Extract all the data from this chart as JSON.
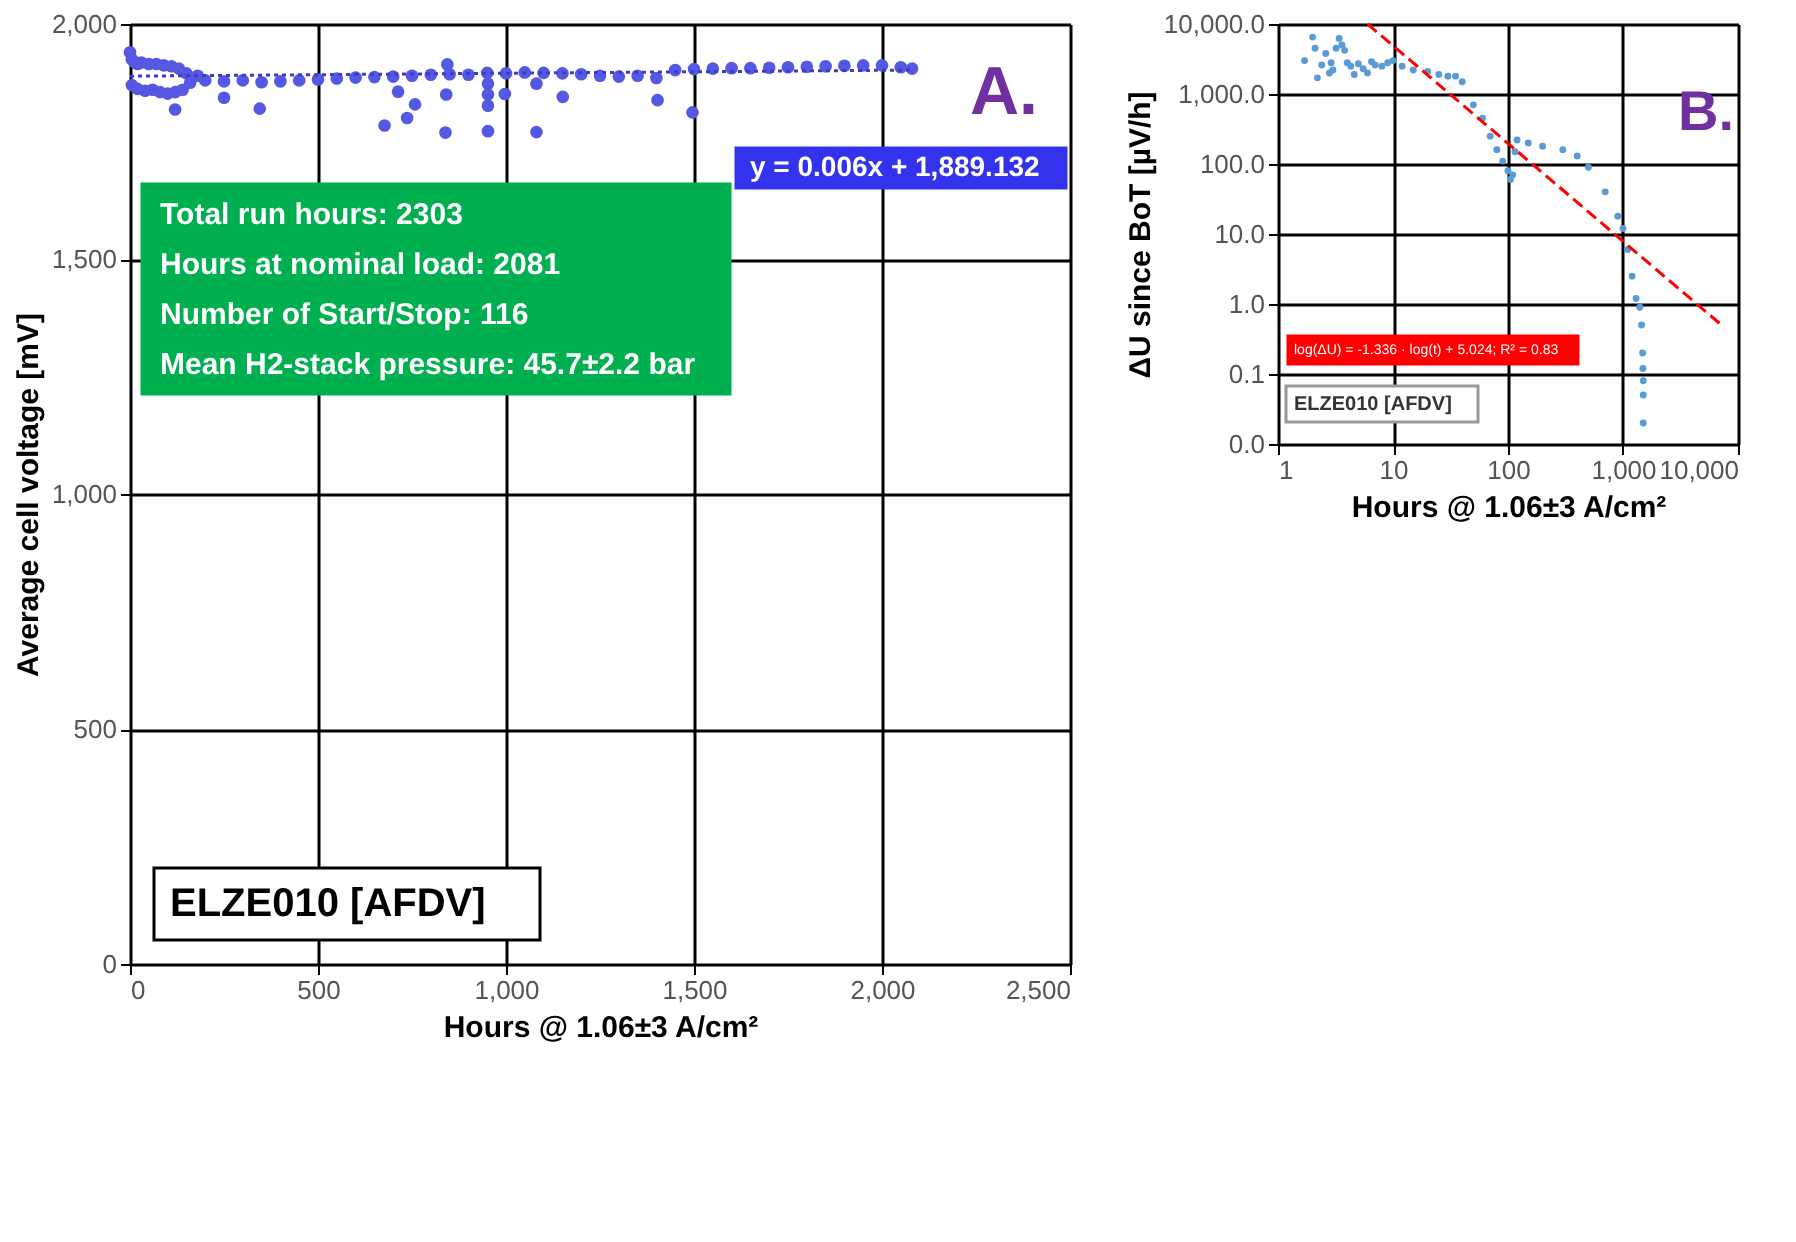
{
  "chart_data": [
    {
      "type": "scatter",
      "xlabel": "Hours @ 1.06±3 A/cm²",
      "ylabel": "Average cell voltage [mV]",
      "xlim": [
        0,
        2500
      ],
      "xticks": [
        0,
        500,
        {
          "value": 1000,
          "label": "1,000"
        },
        {
          "value": 1500,
          "label": "1,500"
        },
        {
          "value": 2000,
          "label": "2,000"
        },
        {
          "value": 2500,
          "label": "2,500"
        }
      ],
      "ylim": [
        0,
        2000
      ],
      "yticks": [
        0,
        500,
        {
          "value": 1000,
          "label": "1,000"
        },
        {
          "value": 1500,
          "label": "1,500"
        },
        {
          "value": 2000,
          "label": "2,000"
        }
      ],
      "grid": true,
      "series": [
        {
          "color": "#5558e0",
          "marker": "circle",
          "x": [
            0,
            5,
            10,
            20,
            30,
            50,
            70,
            90,
            110,
            130,
            150,
            5,
            20,
            40,
            60,
            80,
            100,
            120,
            140,
            160,
            180,
            200,
            250,
            300,
            350,
            400,
            450,
            500,
            550,
            600,
            650,
            700,
            750,
            800,
            850,
            900,
            950,
            1000,
            1050,
            1100,
            1150,
            1200,
            1250,
            1300,
            1350,
            1400,
            1450,
            1500,
            1550,
            1600,
            1650,
            1700,
            1750,
            1800,
            1850,
            1900,
            1950,
            2000,
            2050,
            2080,
            250,
            345,
            120,
            677,
            713,
            737,
            758,
            841,
            839,
            844,
            952,
            952,
            952,
            952,
            997,
            1081,
            1081,
            1151,
            1403,
            1496
          ],
          "values": [
            1940,
            1925,
            1920,
            1915,
            1918,
            1915,
            1915,
            1912,
            1910,
            1905,
            1895,
            1870,
            1862,
            1858,
            1860,
            1855,
            1852,
            1855,
            1860,
            1875,
            1890,
            1880,
            1878,
            1880,
            1876,
            1878,
            1880,
            1882,
            1884,
            1886,
            1887,
            1888,
            1890,
            1892,
            1893,
            1892,
            1896,
            1895,
            1897,
            1896,
            1895,
            1893,
            1890,
            1888,
            1890,
            1885,
            1902,
            1904,
            1905,
            1906,
            1906,
            1907,
            1908,
            1909,
            1910,
            1911,
            1912,
            1912,
            1908,
            1905,
            1843,
            1820,
            1818,
            1784,
            1856,
            1800,
            1829,
            1850,
            1769,
            1914,
            1873,
            1850,
            1826,
            1772,
            1851,
            1770,
            1873,
            1845,
            1838,
            1812
          ]
        },
        {
          "type": "line",
          "color": "#3c3cc8",
          "line_style": "dotted",
          "marker": "none",
          "x": [
            0,
            2080
          ],
          "values": [
            1889,
            1902
          ]
        }
      ],
      "annotations": [
        "Total run hours: 2303",
        "Hours at nominal load: 2081",
        "Number of Start/Stop: 116",
        "Mean H2-stack pressure: 45.7±2.2 bar",
        "y = 0.006x + 1,889.132",
        "A.",
        "ELZE010 [AFDV]"
      ]
    },
    {
      "type": "scatter",
      "xlabel": "Hours @ 1.06±3 A/cm²",
      "ylabel": "ΔU since BoT [µV/h]",
      "log": "xy",
      "xlim": [
        1,
        10000
      ],
      "xticks": [
        1,
        10,
        100,
        {
          "value": 1000,
          "label": "1,000"
        },
        {
          "value": 10000,
          "label": "10,000"
        }
      ],
      "ylim": [
        0.01,
        10000
      ],
      "yticks": [
        {
          "value": 0.01,
          "label": "0.0"
        },
        0.1,
        {
          "value": 1,
          "label": "1.0"
        },
        {
          "value": 10,
          "label": "10.0"
        },
        {
          "value": 100,
          "label": "100.0"
        },
        {
          "value": 1000,
          "label": "1,000.0"
        },
        {
          "value": 10000,
          "label": "10,000.0"
        }
      ],
      "grid": true,
      "series": [
        {
          "color": "#5b9bd5",
          "marker": "circle",
          "x": [
            1.7,
            2.0,
            2.1,
            2.2,
            2.4,
            2.6,
            2.8,
            2.9,
            3.0,
            3.2,
            3.4,
            3.6,
            3.8,
            4.0,
            4.3,
            4.6,
            5,
            5.5,
            6,
            6.5,
            7,
            8,
            9,
            10,
            12,
            15,
            20,
            25,
            30,
            35,
            40,
            50,
            60,
            70,
            80,
            90,
            100,
            105,
            110,
            115,
            120,
            150,
            200,
            300,
            400,
            500,
            700,
            900,
            1000,
            1100,
            1200,
            1300,
            1400,
            1450,
            1480,
            1490,
            1500,
            1500,
            1500
          ],
          "values": [
            3000,
            6500,
            4500,
            1700,
            2600,
            3800,
            2000,
            2800,
            2200,
            4500,
            6200,
            5000,
            4200,
            2800,
            2500,
            1900,
            2700,
            2300,
            2000,
            2900,
            2600,
            2500,
            2800,
            3000,
            2500,
            2200,
            2100,
            1900,
            1800,
            1800,
            1500,
            700,
            450,
            250,
            160,
            110,
            80,
            60,
            70,
            150,
            220,
            200,
            180,
            160,
            130,
            90,
            40,
            18,
            12,
            6,
            2.5,
            1.2,
            0.9,
            0.5,
            0.2,
            0.12,
            0.08,
            0.05,
            0.02
          ]
        },
        {
          "type": "line",
          "color": "#ff0000",
          "line_style": "dashed",
          "marker": "none",
          "x": [
            6,
            7000
          ],
          "values": [
            10000,
            0.52
          ]
        }
      ],
      "annotations": [
        "B.",
        "ELZE010 [AFDV]",
        "log(ΔU) = -1.336 · log(t) + 5.024; R² = 0.83"
      ]
    }
  ]
}
